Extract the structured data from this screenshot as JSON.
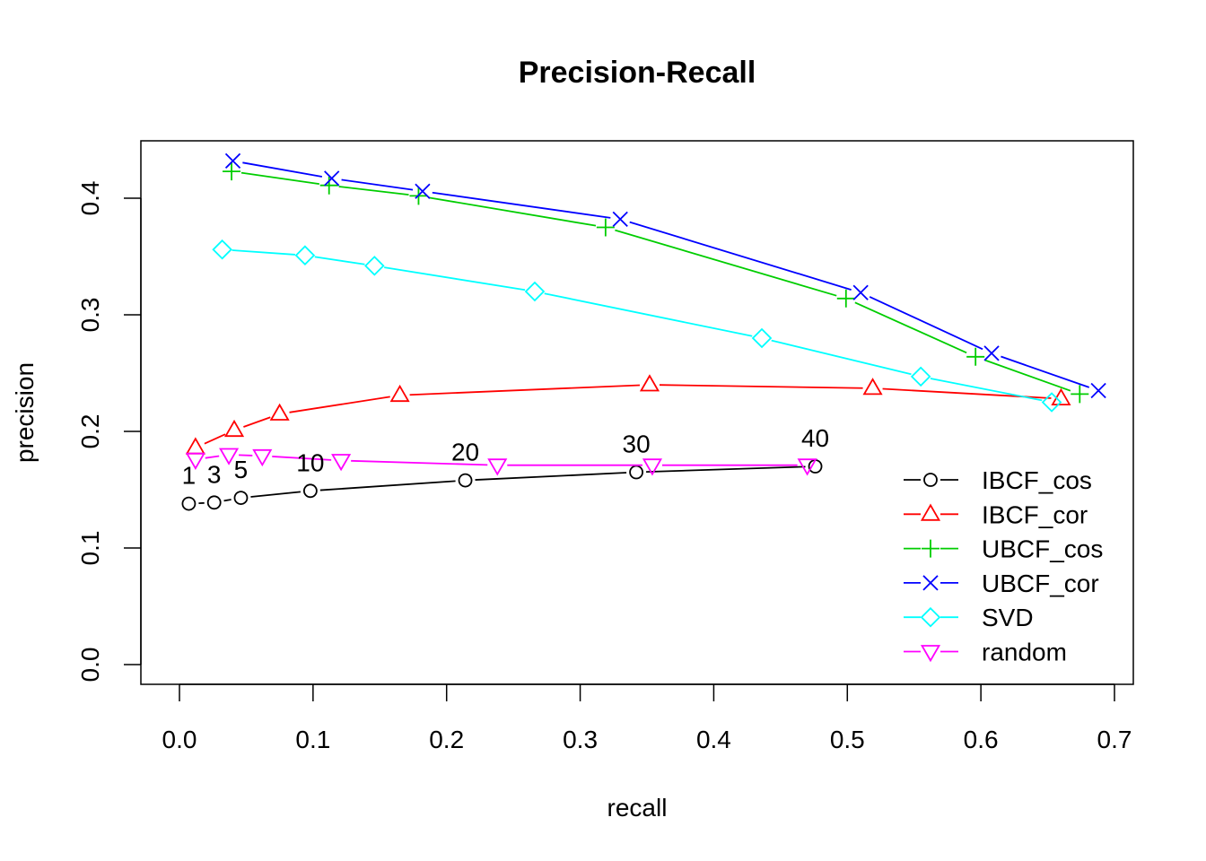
{
  "chart_data": {
    "type": "line",
    "title": "Precision-Recall",
    "xlabel": "recall",
    "ylabel": "precision",
    "xlim": [
      0,
      0.7
    ],
    "ylim": [
      0,
      0.45
    ],
    "xticks": [
      "0.0",
      "0.1",
      "0.2",
      "0.3",
      "0.4",
      "0.5",
      "0.6",
      "0.7"
    ],
    "yticks": [
      "0.0",
      "0.1",
      "0.2",
      "0.3",
      "0.4"
    ],
    "grid": false,
    "legend_position": "bottom-right",
    "series": [
      {
        "name": "IBCF_cos",
        "color": "#000000",
        "marker": "circle",
        "points": [
          [
            0.007,
            0.138
          ],
          [
            0.026,
            0.139
          ],
          [
            0.046,
            0.143
          ],
          [
            0.098,
            0.149
          ],
          [
            0.214,
            0.158
          ],
          [
            0.342,
            0.165
          ],
          [
            0.476,
            0.17
          ]
        ]
      },
      {
        "name": "IBCF_cor",
        "color": "#ff0000",
        "marker": "triangle-up",
        "points": [
          [
            0.012,
            0.186
          ],
          [
            0.041,
            0.201
          ],
          [
            0.075,
            0.215
          ],
          [
            0.165,
            0.231
          ],
          [
            0.352,
            0.24
          ],
          [
            0.519,
            0.237
          ],
          [
            0.66,
            0.228
          ]
        ]
      },
      {
        "name": "UBCF_cos",
        "color": "#00cd00",
        "marker": "plus",
        "points": [
          [
            0.039,
            0.423
          ],
          [
            0.112,
            0.411
          ],
          [
            0.179,
            0.402
          ],
          [
            0.319,
            0.375
          ],
          [
            0.499,
            0.314
          ],
          [
            0.596,
            0.264
          ],
          [
            0.674,
            0.232
          ]
        ]
      },
      {
        "name": "UBCF_cor",
        "color": "#0000ff",
        "marker": "cross",
        "points": [
          [
            0.04,
            0.432
          ],
          [
            0.114,
            0.417
          ],
          [
            0.182,
            0.406
          ],
          [
            0.33,
            0.382
          ],
          [
            0.51,
            0.319
          ],
          [
            0.608,
            0.267
          ],
          [
            0.688,
            0.235
          ]
        ]
      },
      {
        "name": "SVD",
        "color": "#00ffff",
        "marker": "diamond",
        "points": [
          [
            0.032,
            0.356
          ],
          [
            0.094,
            0.351
          ],
          [
            0.146,
            0.342
          ],
          [
            0.266,
            0.32
          ],
          [
            0.436,
            0.28
          ],
          [
            0.555,
            0.247
          ],
          [
            0.653,
            0.225
          ]
        ]
      },
      {
        "name": "random",
        "color": "#ff00ff",
        "marker": "triangle-down",
        "points": [
          [
            0.012,
            0.176
          ],
          [
            0.037,
            0.18
          ],
          [
            0.062,
            0.179
          ],
          [
            0.121,
            0.175
          ],
          [
            0.238,
            0.171
          ],
          [
            0.354,
            0.171
          ],
          [
            0.47,
            0.171
          ]
        ]
      }
    ],
    "point_labels": [
      {
        "text": "1",
        "x": 0.007,
        "y": 0.138
      },
      {
        "text": "3",
        "x": 0.026,
        "y": 0.139
      },
      {
        "text": "5",
        "x": 0.046,
        "y": 0.143
      },
      {
        "text": "10",
        "x": 0.098,
        "y": 0.149
      },
      {
        "text": "20",
        "x": 0.214,
        "y": 0.158
      },
      {
        "text": "30",
        "x": 0.342,
        "y": 0.165
      },
      {
        "text": "40",
        "x": 0.476,
        "y": 0.17
      }
    ]
  }
}
